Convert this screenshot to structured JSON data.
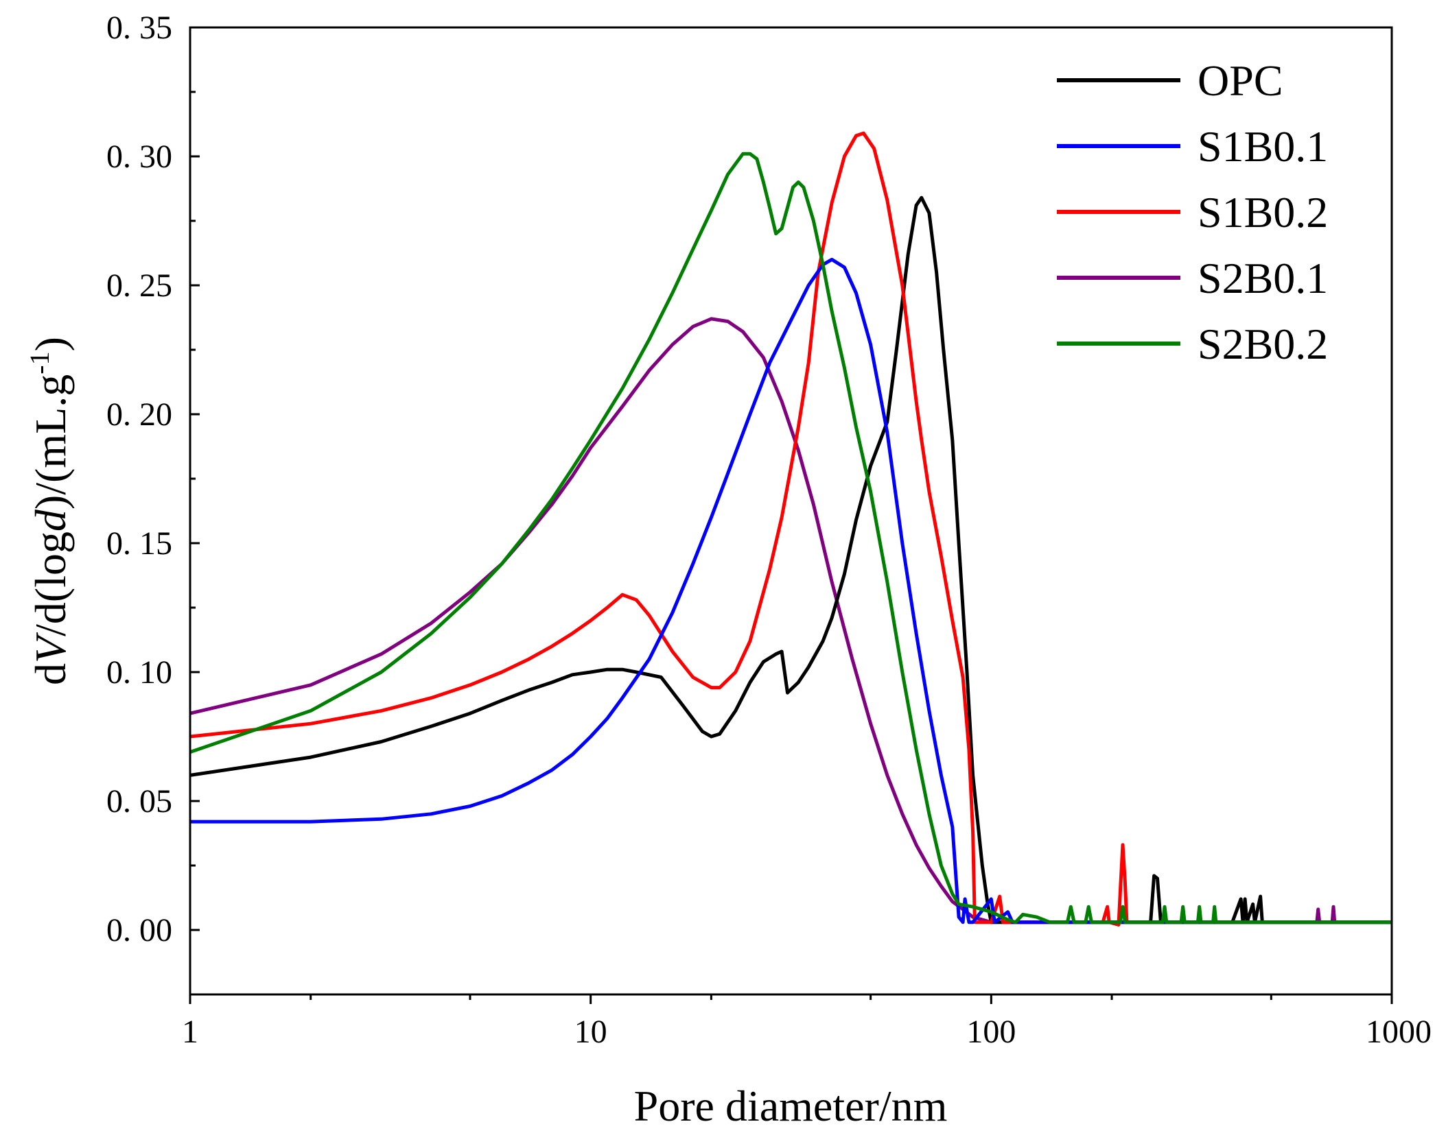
{
  "chart_data": {
    "type": "line",
    "title": "",
    "xlabel": "Pore diameter/nm",
    "ylabel": {
      "prefix": "d",
      "var": "V",
      "mid": "/d(log",
      "var2": "d",
      "suffix": ")/(mL.g",
      "sup": "-1",
      "end": ")"
    },
    "xscale": "log",
    "xlim": [
      1,
      1000
    ],
    "ylim": [
      -0.025,
      0.35
    ],
    "xticks": [
      {
        "value": 1,
        "label": "1"
      },
      {
        "value": 10,
        "label": "10"
      },
      {
        "value": 100,
        "label": "100"
      },
      {
        "value": 1000,
        "label": "1000"
      }
    ],
    "yticks": [
      {
        "value": 0.0,
        "label": "0. 00"
      },
      {
        "value": 0.05,
        "label": "0. 05"
      },
      {
        "value": 0.1,
        "label": "0. 10"
      },
      {
        "value": 0.15,
        "label": "0. 15"
      },
      {
        "value": 0.2,
        "label": "0. 20"
      },
      {
        "value": 0.25,
        "label": "0. 25"
      },
      {
        "value": 0.3,
        "label": "0. 30"
      },
      {
        "value": 0.35,
        "label": "0. 35"
      }
    ],
    "legend_position": "top-right",
    "series": [
      {
        "name": "OPC",
        "color": "#000000",
        "points": [
          [
            1,
            0.06
          ],
          [
            2,
            0.067
          ],
          [
            3,
            0.073
          ],
          [
            4,
            0.079
          ],
          [
            5,
            0.084
          ],
          [
            6,
            0.089
          ],
          [
            7,
            0.093
          ],
          [
            8,
            0.096
          ],
          [
            9,
            0.099
          ],
          [
            10,
            0.1
          ],
          [
            11,
            0.101
          ],
          [
            12,
            0.101
          ],
          [
            13,
            0.1
          ],
          [
            15,
            0.098
          ],
          [
            17,
            0.087
          ],
          [
            19,
            0.077
          ],
          [
            20,
            0.075
          ],
          [
            21,
            0.076
          ],
          [
            23,
            0.085
          ],
          [
            25,
            0.096
          ],
          [
            27,
            0.104
          ],
          [
            29,
            0.107
          ],
          [
            30,
            0.108
          ],
          [
            31,
            0.092
          ],
          [
            33,
            0.096
          ],
          [
            35,
            0.102
          ],
          [
            38,
            0.112
          ],
          [
            40,
            0.121
          ],
          [
            43,
            0.138
          ],
          [
            46,
            0.159
          ],
          [
            50,
            0.18
          ],
          [
            55,
            0.197
          ],
          [
            58,
            0.225
          ],
          [
            62,
            0.262
          ],
          [
            65,
            0.281
          ],
          [
            67,
            0.284
          ],
          [
            70,
            0.278
          ],
          [
            73,
            0.255
          ],
          [
            76,
            0.225
          ],
          [
            80,
            0.19
          ],
          [
            83,
            0.15
          ],
          [
            87,
            0.1
          ],
          [
            90,
            0.06
          ],
          [
            95,
            0.025
          ],
          [
            98,
            0.01
          ],
          [
            100,
            0.003
          ],
          [
            120,
            0.003
          ],
          [
            140,
            0.003
          ],
          [
            200,
            0.003
          ],
          [
            250,
            0.003
          ],
          [
            255,
            0.021
          ],
          [
            260,
            0.02
          ],
          [
            265,
            0.003
          ],
          [
            300,
            0.003
          ],
          [
            400,
            0.003
          ],
          [
            420,
            0.012
          ],
          [
            425,
            0.003
          ],
          [
            430,
            0.012
          ],
          [
            435,
            0.003
          ],
          [
            450,
            0.01
          ],
          [
            455,
            0.003
          ],
          [
            470,
            0.013
          ],
          [
            475,
            0.003
          ],
          [
            1000,
            0.003
          ]
        ]
      },
      {
        "name": "S1B0.1",
        "color": "#0000ff",
        "points": [
          [
            1,
            0.042
          ],
          [
            2,
            0.042
          ],
          [
            3,
            0.043
          ],
          [
            4,
            0.045
          ],
          [
            5,
            0.048
          ],
          [
            6,
            0.052
          ],
          [
            7,
            0.057
          ],
          [
            8,
            0.062
          ],
          [
            9,
            0.068
          ],
          [
            10,
            0.075
          ],
          [
            11,
            0.082
          ],
          [
            12,
            0.09
          ],
          [
            14,
            0.105
          ],
          [
            16,
            0.123
          ],
          [
            18,
            0.142
          ],
          [
            20,
            0.16
          ],
          [
            22,
            0.177
          ],
          [
            25,
            0.2
          ],
          [
            28,
            0.22
          ],
          [
            32,
            0.238
          ],
          [
            35,
            0.25
          ],
          [
            38,
            0.258
          ],
          [
            40,
            0.26
          ],
          [
            43,
            0.257
          ],
          [
            46,
            0.247
          ],
          [
            50,
            0.227
          ],
          [
            55,
            0.193
          ],
          [
            60,
            0.15
          ],
          [
            65,
            0.115
          ],
          [
            70,
            0.085
          ],
          [
            75,
            0.06
          ],
          [
            80,
            0.04
          ],
          [
            83,
            0.005
          ],
          [
            85,
            0.003
          ],
          [
            86,
            0.012
          ],
          [
            88,
            0.003
          ],
          [
            90,
            0.003
          ],
          [
            100,
            0.012
          ],
          [
            102,
            0.003
          ],
          [
            110,
            0.007
          ],
          [
            113,
            0.003
          ],
          [
            1000,
            0.003
          ]
        ]
      },
      {
        "name": "S1B0.2",
        "color": "#ff0000",
        "points": [
          [
            1,
            0.075
          ],
          [
            2,
            0.08
          ],
          [
            3,
            0.085
          ],
          [
            4,
            0.09
          ],
          [
            5,
            0.095
          ],
          [
            6,
            0.1
          ],
          [
            7,
            0.105
          ],
          [
            8,
            0.11
          ],
          [
            9,
            0.115
          ],
          [
            10,
            0.12
          ],
          [
            11,
            0.125
          ],
          [
            12,
            0.13
          ],
          [
            13,
            0.128
          ],
          [
            14,
            0.122
          ],
          [
            16,
            0.108
          ],
          [
            18,
            0.098
          ],
          [
            20,
            0.094
          ],
          [
            21,
            0.094
          ],
          [
            23,
            0.1
          ],
          [
            25,
            0.112
          ],
          [
            28,
            0.14
          ],
          [
            30,
            0.16
          ],
          [
            33,
            0.195
          ],
          [
            35,
            0.22
          ],
          [
            37,
            0.255
          ],
          [
            40,
            0.282
          ],
          [
            43,
            0.3
          ],
          [
            46,
            0.308
          ],
          [
            48,
            0.309
          ],
          [
            51,
            0.303
          ],
          [
            55,
            0.283
          ],
          [
            60,
            0.25
          ],
          [
            65,
            0.205
          ],
          [
            67,
            0.19
          ],
          [
            70,
            0.17
          ],
          [
            75,
            0.145
          ],
          [
            80,
            0.12
          ],
          [
            85,
            0.098
          ],
          [
            88,
            0.07
          ],
          [
            90,
            0.038
          ],
          [
            91,
            0.003
          ],
          [
            100,
            0.003
          ],
          [
            105,
            0.013
          ],
          [
            107,
            0.003
          ],
          [
            190,
            0.003
          ],
          [
            195,
            0.009
          ],
          [
            197,
            0.003
          ],
          [
            208,
            0.002
          ],
          [
            210,
            0.015
          ],
          [
            213,
            0.033
          ],
          [
            216,
            0.018
          ],
          [
            218,
            0.003
          ],
          [
            1000,
            0.003
          ]
        ]
      },
      {
        "name": "S2B0.1",
        "color": "#800080",
        "points": [
          [
            1,
            0.084
          ],
          [
            2,
            0.095
          ],
          [
            3,
            0.107
          ],
          [
            4,
            0.119
          ],
          [
            5,
            0.131
          ],
          [
            6,
            0.142
          ],
          [
            7,
            0.154
          ],
          [
            8,
            0.165
          ],
          [
            9,
            0.176
          ],
          [
            10,
            0.187
          ],
          [
            12,
            0.203
          ],
          [
            14,
            0.217
          ],
          [
            16,
            0.227
          ],
          [
            18,
            0.234
          ],
          [
            20,
            0.237
          ],
          [
            22,
            0.236
          ],
          [
            24,
            0.232
          ],
          [
            27,
            0.222
          ],
          [
            30,
            0.205
          ],
          [
            33,
            0.186
          ],
          [
            36,
            0.165
          ],
          [
            40,
            0.135
          ],
          [
            45,
            0.105
          ],
          [
            50,
            0.08
          ],
          [
            55,
            0.06
          ],
          [
            60,
            0.045
          ],
          [
            65,
            0.033
          ],
          [
            70,
            0.024
          ],
          [
            75,
            0.017
          ],
          [
            80,
            0.011
          ],
          [
            85,
            0.008
          ],
          [
            90,
            0.005
          ],
          [
            100,
            0.003
          ],
          [
            120,
            0.003
          ],
          [
            140,
            0.003
          ],
          [
            650,
            0.003
          ],
          [
            655,
            0.008
          ],
          [
            660,
            0.003
          ],
          [
            710,
            0.003
          ],
          [
            715,
            0.009
          ],
          [
            720,
            0.003
          ],
          [
            1000,
            0.003
          ]
        ]
      },
      {
        "name": "S2B0.2",
        "color": "#008000",
        "points": [
          [
            1,
            0.069
          ],
          [
            2,
            0.085
          ],
          [
            3,
            0.1
          ],
          [
            4,
            0.115
          ],
          [
            5,
            0.129
          ],
          [
            6,
            0.142
          ],
          [
            7,
            0.155
          ],
          [
            8,
            0.167
          ],
          [
            9,
            0.179
          ],
          [
            10,
            0.19
          ],
          [
            12,
            0.21
          ],
          [
            14,
            0.229
          ],
          [
            16,
            0.247
          ],
          [
            18,
            0.264
          ],
          [
            20,
            0.279
          ],
          [
            22,
            0.293
          ],
          [
            24,
            0.301
          ],
          [
            25,
            0.301
          ],
          [
            26,
            0.299
          ],
          [
            27,
            0.29
          ],
          [
            28,
            0.28
          ],
          [
            29,
            0.27
          ],
          [
            30,
            0.272
          ],
          [
            32,
            0.288
          ],
          [
            33,
            0.29
          ],
          [
            34,
            0.288
          ],
          [
            36,
            0.275
          ],
          [
            38,
            0.258
          ],
          [
            40,
            0.24
          ],
          [
            43,
            0.218
          ],
          [
            46,
            0.195
          ],
          [
            50,
            0.17
          ],
          [
            55,
            0.135
          ],
          [
            60,
            0.1
          ],
          [
            65,
            0.07
          ],
          [
            70,
            0.045
          ],
          [
            75,
            0.025
          ],
          [
            80,
            0.014
          ],
          [
            83,
            0.01
          ],
          [
            90,
            0.009
          ],
          [
            100,
            0.007
          ],
          [
            110,
            0.004
          ],
          [
            115,
            0.003
          ],
          [
            120,
            0.006
          ],
          [
            130,
            0.005
          ],
          [
            140,
            0.003
          ],
          [
            155,
            0.003
          ],
          [
            158,
            0.009
          ],
          [
            161,
            0.003
          ],
          [
            172,
            0.003
          ],
          [
            175,
            0.009
          ],
          [
            178,
            0.003
          ],
          [
            210,
            0.003
          ],
          [
            213,
            0.009
          ],
          [
            216,
            0.003
          ],
          [
            268,
            0.003
          ],
          [
            271,
            0.009
          ],
          [
            274,
            0.003
          ],
          [
            298,
            0.003
          ],
          [
            301,
            0.009
          ],
          [
            304,
            0.003
          ],
          [
            328,
            0.003
          ],
          [
            331,
            0.009
          ],
          [
            334,
            0.003
          ],
          [
            358,
            0.003
          ],
          [
            361,
            0.009
          ],
          [
            364,
            0.003
          ],
          [
            1000,
            0.003
          ]
        ]
      }
    ]
  }
}
